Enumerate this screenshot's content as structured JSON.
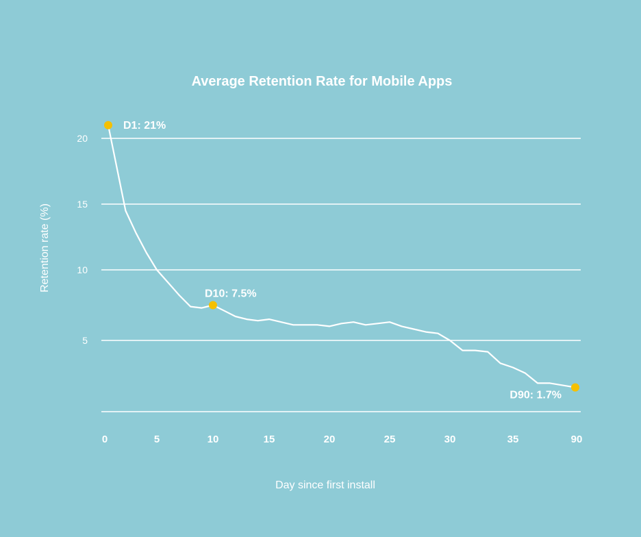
{
  "chart_data": {
    "type": "line",
    "title": "Average Retention Rate for Mobile Apps",
    "xlabel": "Day since first install",
    "ylabel": "Retention rate (%)",
    "x_ticks": [
      "0",
      "5",
      "10",
      "15",
      "20",
      "25",
      "30",
      "35",
      "90"
    ],
    "y_ticks": [
      5,
      10,
      15,
      20
    ],
    "ylim": [
      0,
      21
    ],
    "grid": true,
    "series": [
      {
        "x": [
          1,
          2,
          3,
          4,
          5,
          6,
          7,
          8,
          9,
          10,
          11,
          12,
          13,
          14,
          15,
          16,
          17,
          18,
          19,
          20,
          21,
          22,
          23,
          24,
          25,
          26,
          27,
          28,
          29,
          30,
          31,
          32,
          33,
          34,
          35,
          36,
          37,
          38,
          90
        ],
        "values": [
          21,
          14.5,
          12.8,
          11.3,
          10.0,
          9.1,
          8.2,
          7.4,
          7.3,
          7.5,
          7.1,
          6.7,
          6.5,
          6.4,
          6.5,
          6.3,
          6.1,
          6.1,
          6.1,
          6.0,
          6.2,
          6.3,
          6.1,
          6.2,
          6.3,
          6.0,
          5.8,
          5.6,
          5.5,
          5.0,
          4.3,
          4.3,
          4.2,
          3.4,
          3.1,
          2.7,
          2.0,
          2.0,
          1.7
        ]
      }
    ],
    "highlights": [
      {
        "index": 0,
        "label": "D1: 21%"
      },
      {
        "index": 9,
        "label": "D10: 7.5%"
      },
      {
        "index": 38,
        "label": "D90: 1.7%"
      }
    ],
    "colors": {
      "background": "#8ecbd6",
      "line": "#ffffff",
      "marker": "#f5c000"
    }
  }
}
